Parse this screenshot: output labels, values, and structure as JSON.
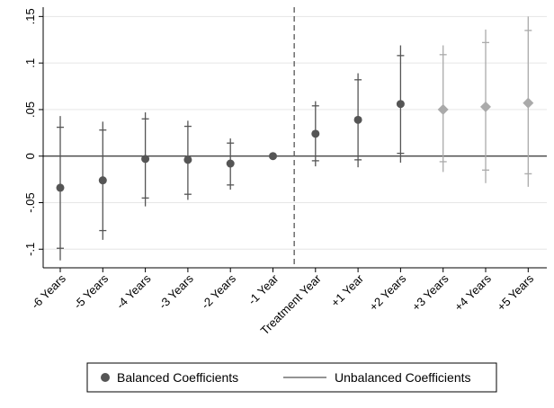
{
  "chart_data": {
    "type": "scatter",
    "title": "",
    "xlabel": "",
    "ylabel": "",
    "ylim": [
      -0.12,
      0.16
    ],
    "yticks": [
      {
        "value": 0.15,
        "label": ".15"
      },
      {
        "value": 0.1,
        "label": ".1"
      },
      {
        "value": 0.05,
        "label": ".05"
      },
      {
        "value": 0,
        "label": "0"
      },
      {
        "value": -0.05,
        "label": "-.05"
      },
      {
        "value": -0.1,
        "label": "-.1"
      }
    ],
    "categories": [
      "-6 Years",
      "-5 Years",
      "-4 Years",
      "-3 Years",
      "-2 Years",
      "-1 Year",
      "Treatment Year",
      "+1 Year",
      "+2 Years",
      "+3 Years",
      "+4 Years",
      "+5 Years"
    ],
    "treatment_line_after_index": 5,
    "grid": true,
    "legend_position": "bottom",
    "series": [
      {
        "name": "Balanced Coefficients",
        "color": "#555555",
        "marker": "circle",
        "points": [
          {
            "x": "-6 Years",
            "y": -0.034,
            "ci95": [
              -0.112,
              0.043
            ],
            "ci90": [
              -0.099,
              0.031
            ]
          },
          {
            "x": "-5 Years",
            "y": -0.026,
            "ci95": [
              -0.09,
              0.037
            ],
            "ci90": [
              -0.08,
              0.028
            ]
          },
          {
            "x": "-4 Years",
            "y": -0.003,
            "ci95": [
              -0.054,
              0.047
            ],
            "ci90": [
              -0.045,
              0.04
            ]
          },
          {
            "x": "-3 Years",
            "y": -0.004,
            "ci95": [
              -0.047,
              0.038
            ],
            "ci90": [
              -0.041,
              0.032
            ]
          },
          {
            "x": "-2 Years",
            "y": -0.008,
            "ci95": [
              -0.036,
              0.019
            ],
            "ci90": [
              -0.031,
              0.014
            ]
          },
          {
            "x": "-1 Year",
            "y": 0.0
          },
          {
            "x": "Treatment Year",
            "y": 0.024,
            "ci95": [
              -0.011,
              0.059
            ],
            "ci90": [
              -0.005,
              0.054
            ]
          },
          {
            "x": "+1 Year",
            "y": 0.039,
            "ci95": [
              -0.012,
              0.089
            ],
            "ci90": [
              -0.004,
              0.082
            ]
          },
          {
            "x": "+2 Years",
            "y": 0.056,
            "ci95": [
              -0.007,
              0.119
            ],
            "ci90": [
              0.003,
              0.108
            ]
          }
        ]
      },
      {
        "name": "Unbalanced Coefficients",
        "color": "#aaaaaa",
        "marker": "diamond",
        "points": [
          {
            "x": "+3 Years",
            "y": 0.05,
            "ci95": [
              -0.017,
              0.119
            ],
            "ci90": [
              -0.006,
              0.109
            ]
          },
          {
            "x": "+4 Years",
            "y": 0.053,
            "ci95": [
              -0.029,
              0.136
            ],
            "ci90": [
              -0.015,
              0.122
            ]
          },
          {
            "x": "+5 Years",
            "y": 0.057,
            "ci95": [
              -0.033,
              0.15
            ],
            "ci90": [
              -0.019,
              0.135
            ]
          }
        ]
      }
    ]
  },
  "legend": {
    "balanced_label": "Balanced Coefficients",
    "unbalanced_label": "Unbalanced Coefficients"
  }
}
